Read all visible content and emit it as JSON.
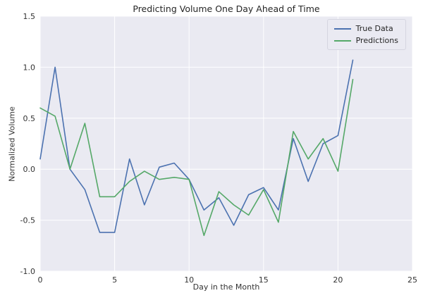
{
  "chart_data": {
    "type": "line",
    "title": "Predicting Volume One Day Ahead of Time",
    "xlabel": "Day in the Month",
    "ylabel": "Normalized Volume",
    "xlim": [
      0,
      25
    ],
    "ylim": [
      -1.0,
      1.5
    ],
    "x_ticks": [
      0,
      5,
      10,
      15,
      20,
      25
    ],
    "x_tick_labels": [
      "0",
      "5",
      "10",
      "15",
      "20",
      "25"
    ],
    "y_ticks": [
      -1.0,
      -0.5,
      0.0,
      0.5,
      1.0,
      1.5
    ],
    "y_tick_labels": [
      "-1.0",
      "-0.5",
      "0.0",
      "0.5",
      "1.0",
      "1.5"
    ],
    "grid": true,
    "legend_position": "upper right",
    "background_color": "#eaeaf2",
    "grid_color": "#ffffff",
    "x": [
      0,
      1,
      2,
      3,
      4,
      5,
      6,
      7,
      8,
      9,
      10,
      11,
      12,
      13,
      14,
      15,
      16,
      17,
      18,
      19,
      20,
      21
    ],
    "series": [
      {
        "name": "True Data",
        "color": "#4c72b0",
        "values": [
          0.1,
          1.0,
          0.0,
          -0.2,
          -0.62,
          -0.62,
          0.1,
          -0.35,
          0.02,
          0.06,
          -0.1,
          -0.4,
          -0.28,
          -0.55,
          -0.25,
          -0.18,
          -0.4,
          0.3,
          -0.12,
          0.25,
          0.33,
          1.07
        ]
      },
      {
        "name": "Predictions",
        "color": "#55a868",
        "values": [
          0.6,
          0.52,
          0.0,
          0.45,
          -0.27,
          -0.27,
          -0.12,
          -0.02,
          -0.1,
          -0.08,
          -0.1,
          -0.65,
          -0.22,
          -0.35,
          -0.45,
          -0.2,
          -0.52,
          0.37,
          0.1,
          0.3,
          -0.02,
          0.88
        ]
      }
    ]
  }
}
